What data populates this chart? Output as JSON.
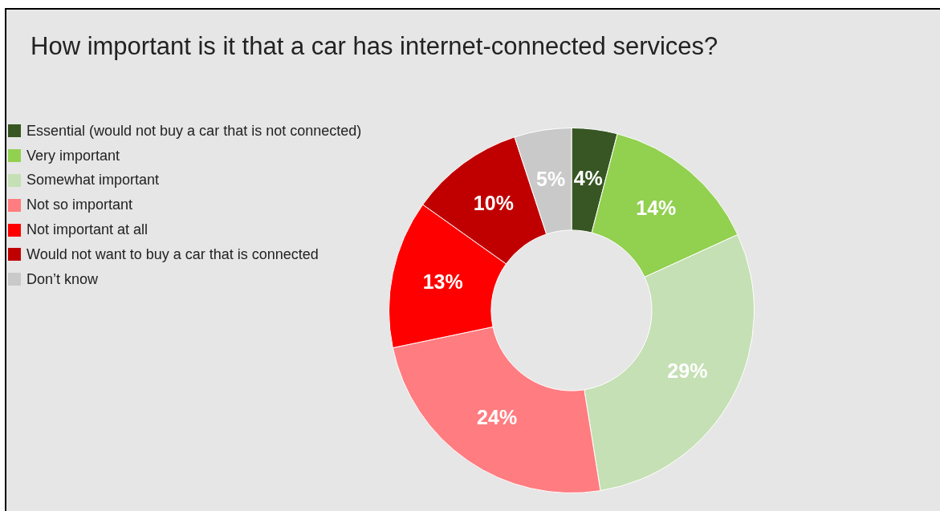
{
  "chart_data": {
    "type": "donut",
    "title": "How important is it that a car has internet-connected services?",
    "categories": [
      "Essential (would not buy a car that is not connected)",
      "Very important",
      "Somewhat important",
      "Not so important",
      "Not important at all",
      "Would not want to buy a car that is connected",
      "Don’t know"
    ],
    "values": [
      4,
      14,
      29,
      24,
      13,
      10,
      5
    ],
    "value_labels": [
      "4%",
      "14%",
      "29%",
      "24%",
      "13%",
      "10%",
      "5%"
    ],
    "colors": [
      "#375623",
      "#92d050",
      "#c5e0b4",
      "#ff7c80",
      "#ff0000",
      "#c00000",
      "#c9c9c9"
    ],
    "legend": "left"
  }
}
